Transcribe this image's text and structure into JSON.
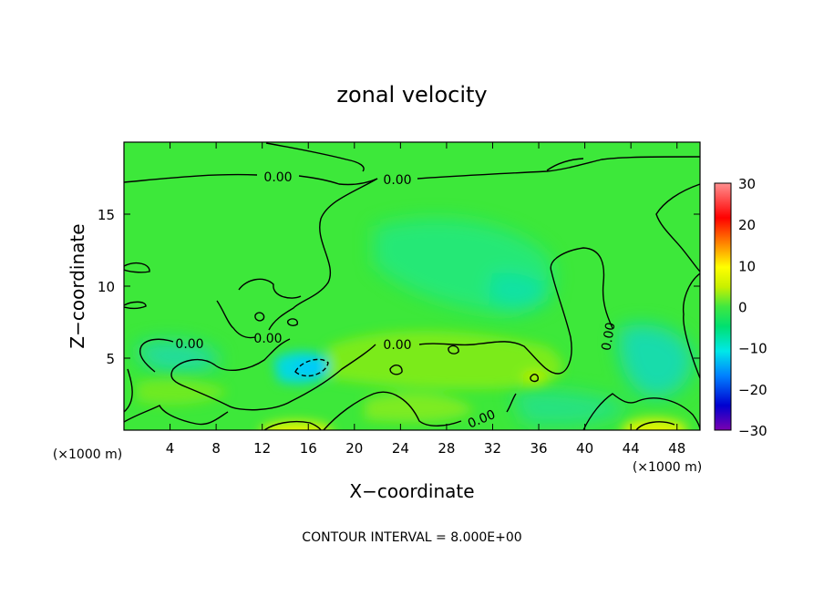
{
  "chart_data": {
    "type": "heatmap",
    "title": "zonal velocity",
    "xlabel": "X−coordinate",
    "ylabel": "Z−coordinate",
    "x_unit": "(×1000 m)",
    "xlim": [
      0,
      50
    ],
    "ylim": [
      0,
      20
    ],
    "x_ticks": [
      4,
      8,
      12,
      16,
      20,
      24,
      28,
      32,
      36,
      40,
      44,
      48
    ],
    "y_ticks": [
      5,
      10,
      15
    ],
    "colorbar": {
      "range": [
        -30,
        30
      ],
      "ticks": [
        "30",
        "20",
        "10",
        "0",
        "−10",
        "−20",
        "−30"
      ],
      "values": [
        30,
        20,
        10,
        0,
        -10,
        -20,
        -30
      ],
      "colormap": [
        "#7b00b0",
        "#0000d0",
        "#0080ff",
        "#00e8e8",
        "#00e070",
        "#40e840",
        "#c8f000",
        "#ffff00",
        "#ff8000",
        "#ff0000",
        "#ff9090"
      ]
    },
    "background_color": "#3de83a",
    "contour_interval": 8.0,
    "contour_labels": [
      "0.00",
      "0.00",
      "0.00",
      "0.00",
      "0.00",
      "0.00",
      "0.00"
    ],
    "regions": [
      {
        "name": "weak negative patch",
        "x": 23,
        "z": 11,
        "value": -4
      },
      {
        "name": "negative core",
        "x": 17,
        "z": 4.5,
        "value": -9
      },
      {
        "name": "negative patch",
        "x": 6,
        "z": 5,
        "value": -5
      },
      {
        "name": "negative patch",
        "x": 45,
        "z": 5,
        "value": -6
      },
      {
        "name": "positive band",
        "x": 28,
        "z": 4.5,
        "value": 6
      },
      {
        "name": "positive near surface",
        "x": 15,
        "z": 0.5,
        "value": 10
      },
      {
        "name": "positive near surface",
        "x": 46,
        "z": 0.5,
        "value": 11
      }
    ]
  },
  "footer": {
    "contour_interval_text": "CONTOUR INTERVAL = 8.000E+00"
  }
}
